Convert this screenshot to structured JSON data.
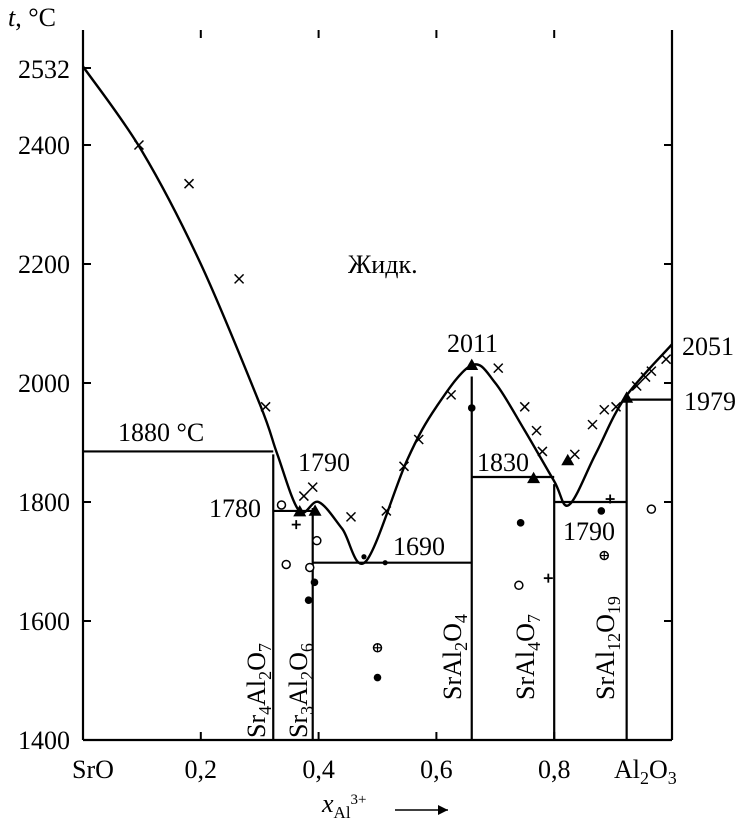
{
  "chart_data": {
    "type": "phase-diagram",
    "y_axis": {
      "label_var": "t",
      "label_unit": ", °C",
      "range": [
        1400,
        2620
      ],
      "ticks": [
        1400,
        1600,
        1800,
        2000,
        2200,
        2400
      ],
      "special_label": "2532"
    },
    "x_axis": {
      "range": [
        0.0,
        1.0
      ],
      "tick_labels": [
        {
          "x": 0.0,
          "text": "SrO"
        },
        {
          "x": 0.2,
          "text": "0,2"
        },
        {
          "x": 0.4,
          "text": "0,4"
        },
        {
          "x": 0.6,
          "text": "0,6"
        },
        {
          "x": 0.8,
          "text": "0,8"
        },
        {
          "x": 0.92,
          "text": "Al2O3"
        }
      ],
      "label_var": "x",
      "label_sub": "Al",
      "label_sup": "3+"
    },
    "region_label": "Жидк.",
    "melting_points": {
      "SrO": 2532,
      "Al2O3": 2051
    },
    "temperature_labels": [
      {
        "t": 1880,
        "text": "1880 °C"
      },
      {
        "t": 1790,
        "text": "1790"
      },
      {
        "t": 1780,
        "text": "1780"
      },
      {
        "t": 1690,
        "text": "1690"
      },
      {
        "t": 2011,
        "text": "2011"
      },
      {
        "t": 1830,
        "text": "1830"
      },
      {
        "t": 1790,
        "text": "1790"
      },
      {
        "t": 2051,
        "text": "2051"
      },
      {
        "t": 1979,
        "text": "1979"
      }
    ],
    "compounds": [
      {
        "formula": "Sr4Al2O7",
        "x": 0.323,
        "melt": 1880
      },
      {
        "formula": "Sr3Al2O6",
        "x": 0.39,
        "melt": 1790
      },
      {
        "formula": "SrAl2O4",
        "x": 0.66,
        "melt": 2011
      },
      {
        "formula": "SrAl4O7",
        "x": 0.8,
        "melt": 1830
      },
      {
        "formula": "SrAl12O19",
        "x": 0.923,
        "melt": 1979
      }
    ],
    "liquidus": [
      {
        "x": 0,
        "t": 2532
      },
      {
        "x": 0.1,
        "t": 2390
      },
      {
        "x": 0.2,
        "t": 2200
      },
      {
        "x": 0.3,
        "t": 1965
      },
      {
        "x": 0.33,
        "t": 1880
      },
      {
        "x": 0.367,
        "t": 1785
      },
      {
        "x": 0.4,
        "t": 1800
      },
      {
        "x": 0.44,
        "t": 1755
      },
      {
        "x": 0.48,
        "t": 1700
      },
      {
        "x": 0.55,
        "t": 1870
      },
      {
        "x": 0.6,
        "t": 1960
      },
      {
        "x": 0.66,
        "t": 2030
      },
      {
        "x": 0.7,
        "t": 2000
      },
      {
        "x": 0.75,
        "t": 1920
      },
      {
        "x": 0.8,
        "t": 1835
      },
      {
        "x": 0.825,
        "t": 1795
      },
      {
        "x": 0.87,
        "t": 1880
      },
      {
        "x": 0.92,
        "t": 1975
      },
      {
        "x": 1.0,
        "t": 2065
      }
    ],
    "horizontal_lines": [
      {
        "x1": 0.0,
        "x2": 0.323,
        "t": 1885
      },
      {
        "x1": 0.323,
        "x2": 0.39,
        "t": 1785
      },
      {
        "x1": 0.39,
        "x2": 0.66,
        "t": 1698
      },
      {
        "x1": 0.66,
        "x2": 0.8,
        "t": 1842
      },
      {
        "x1": 0.8,
        "x2": 0.923,
        "t": 1800
      },
      {
        "x1": 0.923,
        "x2": 1.0,
        "t": 1972
      }
    ],
    "points_cross": [
      {
        "x": 0.095,
        "t": 2400
      },
      {
        "x": 0.18,
        "t": 2335
      },
      {
        "x": 0.265,
        "t": 2175
      },
      {
        "x": 0.31,
        "t": 1960
      },
      {
        "x": 0.39,
        "t": 1825
      },
      {
        "x": 0.375,
        "t": 1810
      },
      {
        "x": 0.455,
        "t": 1775
      },
      {
        "x": 0.515,
        "t": 1785
      },
      {
        "x": 0.545,
        "t": 1860
      },
      {
        "x": 0.57,
        "t": 1905
      },
      {
        "x": 0.625,
        "t": 1980
      },
      {
        "x": 0.705,
        "t": 2025
      },
      {
        "x": 0.75,
        "t": 1960
      },
      {
        "x": 0.77,
        "t": 1920
      },
      {
        "x": 0.78,
        "t": 1885
      },
      {
        "x": 0.835,
        "t": 1880
      },
      {
        "x": 0.865,
        "t": 1930
      },
      {
        "x": 0.885,
        "t": 1955
      },
      {
        "x": 0.905,
        "t": 1960
      },
      {
        "x": 0.94,
        "t": 1995
      },
      {
        "x": 0.955,
        "t": 2010
      },
      {
        "x": 0.965,
        "t": 2020
      },
      {
        "x": 0.99,
        "t": 2040
      }
    ],
    "points_dot": [
      {
        "x": 0.383,
        "t": 1635
      },
      {
        "x": 0.393,
        "t": 1665
      },
      {
        "x": 0.66,
        "t": 1958
      },
      {
        "x": 0.743,
        "t": 1765
      },
      {
        "x": 0.88,
        "t": 1785
      },
      {
        "x": 0.5,
        "t": 1505
      }
    ],
    "points_circle": [
      {
        "x": 0.337,
        "t": 1795
      },
      {
        "x": 0.345,
        "t": 1695
      },
      {
        "x": 0.385,
        "t": 1690
      },
      {
        "x": 0.397,
        "t": 1735
      },
      {
        "x": 0.74,
        "t": 1660
      },
      {
        "x": 0.965,
        "t": 1788
      }
    ],
    "points_triangle": [
      {
        "x": 0.368,
        "t": 1784
      },
      {
        "x": 0.394,
        "t": 1785
      },
      {
        "x": 0.66,
        "t": 2030
      },
      {
        "x": 0.765,
        "t": 1840
      },
      {
        "x": 0.823,
        "t": 1870
      },
      {
        "x": 0.923,
        "t": 1975
      }
    ],
    "points_plus": [
      {
        "x": 0.362,
        "t": 1762
      },
      {
        "x": 0.79,
        "t": 1672
      },
      {
        "x": 0.895,
        "t": 1805
      }
    ],
    "points_circle_plus": [
      {
        "x": 0.5,
        "t": 1555
      },
      {
        "x": 0.885,
        "t": 1710
      }
    ],
    "points_small_dot": [
      {
        "x": 0.477,
        "t": 1708
      },
      {
        "x": 0.513,
        "t": 1698
      }
    ]
  }
}
